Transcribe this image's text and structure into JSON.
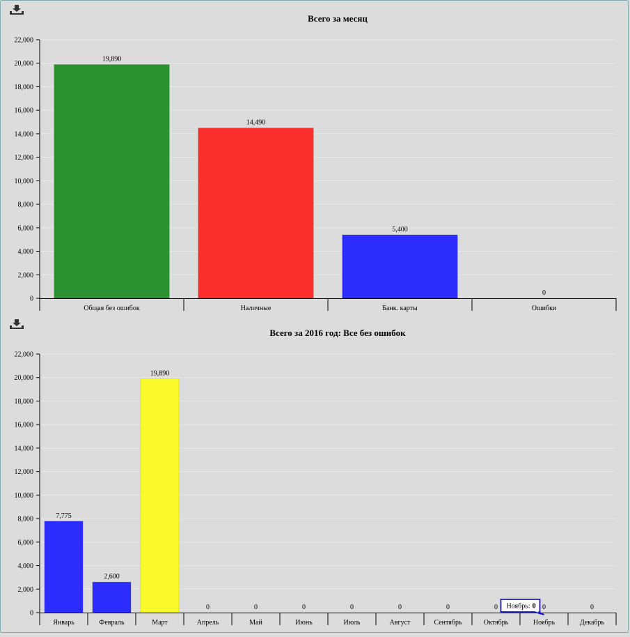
{
  "icons": {
    "export": "download-icon"
  },
  "chart_data": [
    {
      "type": "bar",
      "title": "Всего за месяц",
      "categories": [
        "Общая без ошибок",
        "Наличные",
        "Банк. карты",
        "Ошибки"
      ],
      "values": [
        19890,
        14490,
        5400,
        0
      ],
      "value_labels": [
        "19,890",
        "14,490",
        "5,400",
        "0"
      ],
      "colors": [
        "#2c9130",
        "#fb2e2e",
        "#2c2cfc",
        "#2c2cfc"
      ],
      "ylim": [
        0,
        22000
      ],
      "yticks": [
        0,
        2000,
        4000,
        6000,
        8000,
        10000,
        12000,
        14000,
        16000,
        18000,
        20000,
        22000
      ],
      "ytick_labels": [
        "0",
        "2,000",
        "4,000",
        "6,000",
        "8,000",
        "10,000",
        "12,000",
        "14,000",
        "16,000",
        "18,000",
        "20,000",
        "22,000"
      ],
      "grid": true
    },
    {
      "type": "bar",
      "title": "Всего за 2016 год: Все без ошибок",
      "categories": [
        "Январь",
        "Февраль",
        "Март",
        "Апрель",
        "Май",
        "Июнь",
        "Июль",
        "Август",
        "Сентябрь",
        "Октябрь",
        "Ноябрь",
        "Декабрь"
      ],
      "values": [
        7775,
        2600,
        19890,
        0,
        0,
        0,
        0,
        0,
        0,
        0,
        0,
        0
      ],
      "value_labels": [
        "7,775",
        "2,600",
        "19,890",
        "0",
        "0",
        "0",
        "0",
        "0",
        "0",
        "0",
        "0",
        "0"
      ],
      "colors": [
        "#2c2cfc",
        "#2c2cfc",
        "#f9f92c",
        "#2c2cfc",
        "#2c2cfc",
        "#2c2cfc",
        "#2c2cfc",
        "#2c2cfc",
        "#2c2cfc",
        "#2c2cfc",
        "#2c2cfc",
        "#2c2cfc"
      ],
      "ylim": [
        0,
        22000
      ],
      "yticks": [
        0,
        2000,
        4000,
        6000,
        8000,
        10000,
        12000,
        14000,
        16000,
        18000,
        20000,
        22000
      ],
      "ytick_labels": [
        "0",
        "2,000",
        "4,000",
        "6,000",
        "8,000",
        "10,000",
        "12,000",
        "14,000",
        "16,000",
        "18,000",
        "20,000",
        "22,000"
      ],
      "grid": true,
      "tooltip": {
        "label": "Ноябрь:",
        "value": "0",
        "category_index": 10
      }
    }
  ]
}
